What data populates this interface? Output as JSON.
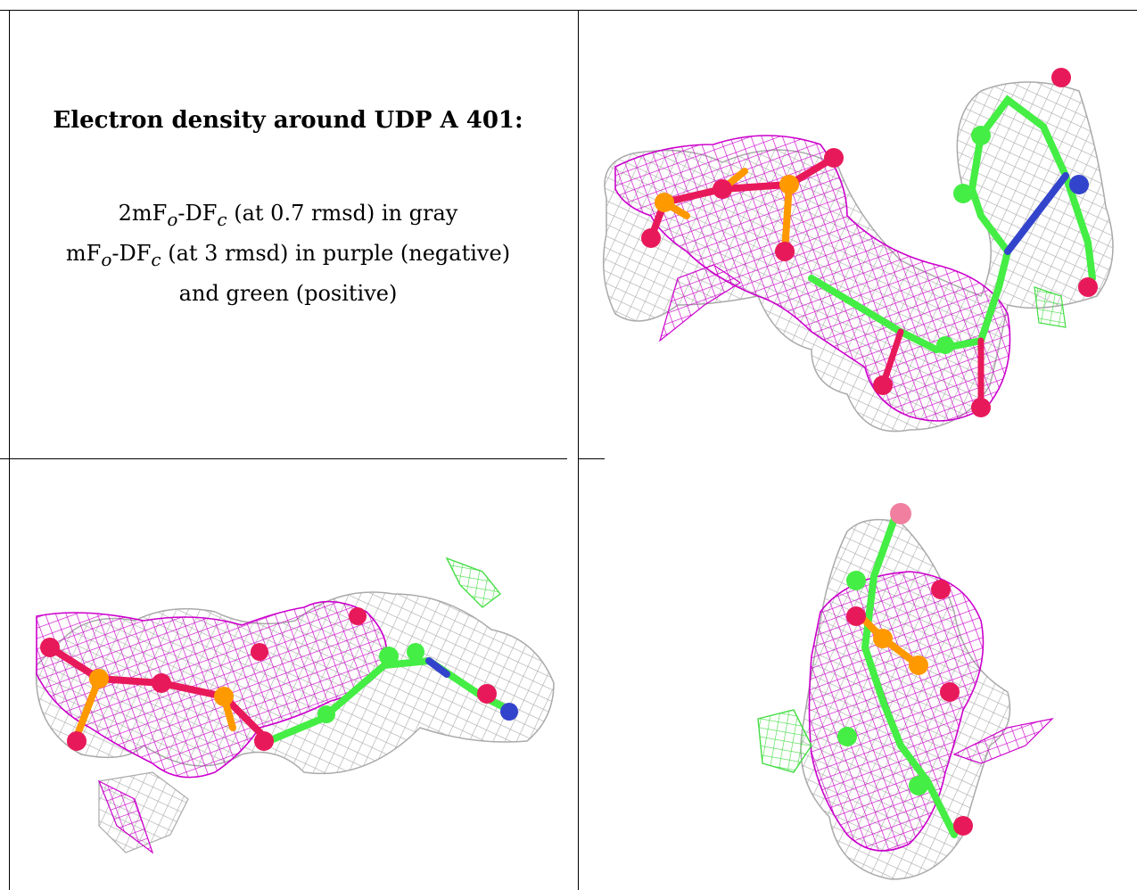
{
  "caption": {
    "title": "Electron density around UDP A 401:",
    "line1": {
      "pre": "2mF",
      "sub1": "o",
      "mid": "-DF",
      "sub2": "c",
      "post": " (at 0.7 rmsd) in gray"
    },
    "line2": {
      "pre": "mF",
      "sub1": "o",
      "mid": "-DF",
      "sub2": "c",
      "post": " (at 3 rmsd) in purple (negative)"
    },
    "line3": "and green (positive)"
  },
  "colors": {
    "density_2fofc": "#aaaaaa",
    "density_negative": "#cc00cc",
    "density_positive": "#44dd44",
    "atom_oxygen": "#e8195a",
    "atom_phosphorus": "#ff9900",
    "atom_nitrogen": "#3344cc",
    "atom_carbon": "#44ee44"
  },
  "panels": [
    {
      "view": "top-right"
    },
    {
      "view": "bottom-left"
    },
    {
      "view": "bottom-right"
    }
  ]
}
